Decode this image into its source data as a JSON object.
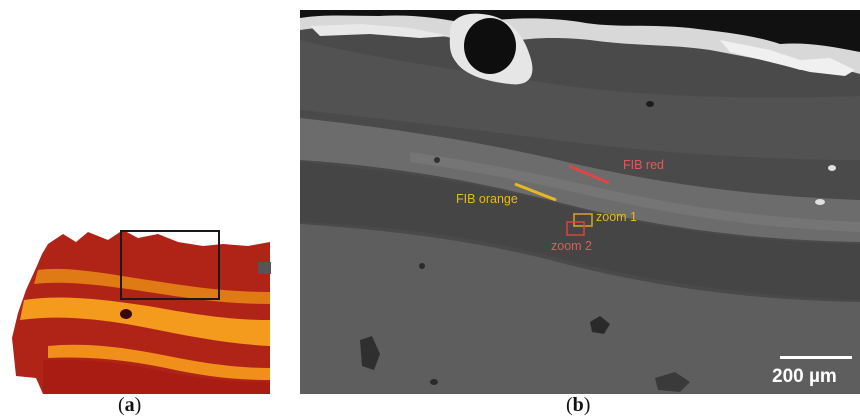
{
  "panel_a": {
    "caption_letter": "a"
  },
  "panel_b": {
    "caption_letter": "b",
    "labels": {
      "fib_red": "FIB red",
      "fib_orange": "FIB orange",
      "zoom1": "zoom 1",
      "zoom2": "zoom 2"
    },
    "scale_bar": "200 µm"
  },
  "colors": {
    "fib_red": "#e04545",
    "fib_orange": "#e8b820",
    "zoom1_box": "#d9a520",
    "zoom2_box": "#d9443a",
    "panel_a_box": "#1a1a1a"
  }
}
